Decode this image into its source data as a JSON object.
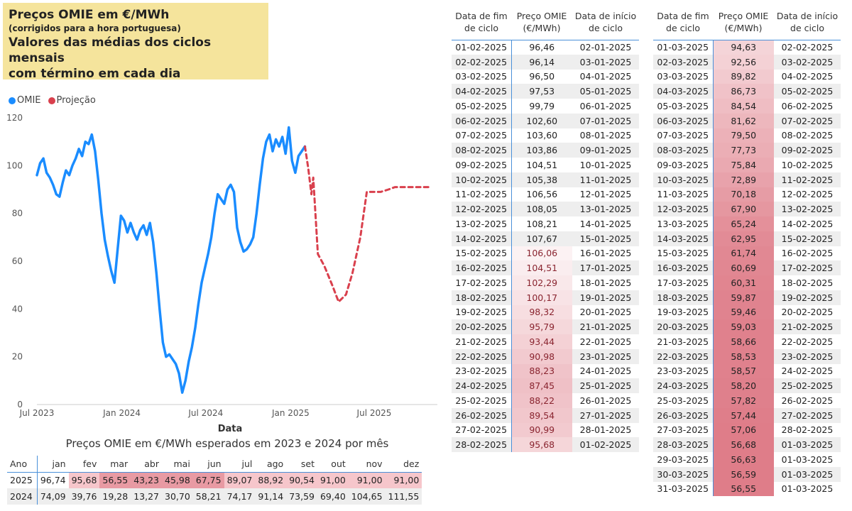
{
  "title": {
    "line1": "Preços OMIE em €/MWh",
    "line2": "(corrigidos para a hora portuguesa)",
    "line3": "Valores das médias dos ciclos mensais",
    "line4": "com término em cada dia"
  },
  "legend": {
    "omie": "OMIE",
    "projecao": "Projeção",
    "omie_color": "#1a8cff",
    "projecao_color": "#d9404d"
  },
  "chart_data": {
    "type": "line",
    "xlabel": "Data",
    "ylabel": "",
    "ylim": [
      0,
      120
    ],
    "yticks": [
      0,
      20,
      40,
      60,
      80,
      100,
      120
    ],
    "xticks": [
      "Jul 2023",
      "Jan 2024",
      "Jul 2024",
      "Jan 2025",
      "Jul 2025"
    ],
    "xtick_dates": [
      "2023-07-01",
      "2024-01-01",
      "2024-07-01",
      "2025-01-01",
      "2025-07-01"
    ],
    "xlim": [
      "2023-07-01",
      "2025-11-15"
    ],
    "series": [
      {
        "name": "OMIE",
        "color": "#1a8cff",
        "style": "solid",
        "points": [
          [
            "2023-07-01",
            96
          ],
          [
            "2023-07-08",
            101
          ],
          [
            "2023-07-15",
            103
          ],
          [
            "2023-07-22",
            97
          ],
          [
            "2023-07-29",
            95
          ],
          [
            "2023-08-05",
            92
          ],
          [
            "2023-08-12",
            88
          ],
          [
            "2023-08-19",
            87
          ],
          [
            "2023-08-26",
            93
          ],
          [
            "2023-09-02",
            98
          ],
          [
            "2023-09-09",
            96
          ],
          [
            "2023-09-16",
            100
          ],
          [
            "2023-09-23",
            103
          ],
          [
            "2023-09-30",
            107
          ],
          [
            "2023-10-07",
            104
          ],
          [
            "2023-10-14",
            110
          ],
          [
            "2023-10-21",
            109
          ],
          [
            "2023-10-28",
            113
          ],
          [
            "2023-11-04",
            106
          ],
          [
            "2023-11-11",
            94
          ],
          [
            "2023-11-18",
            80
          ],
          [
            "2023-11-25",
            69
          ],
          [
            "2023-12-02",
            62
          ],
          [
            "2023-12-09",
            56
          ],
          [
            "2023-12-16",
            51
          ],
          [
            "2023-12-23",
            65
          ],
          [
            "2023-12-30",
            79
          ],
          [
            "2024-01-06",
            77
          ],
          [
            "2024-01-13",
            72
          ],
          [
            "2024-01-20",
            76
          ],
          [
            "2024-01-27",
            72
          ],
          [
            "2024-02-03",
            69
          ],
          [
            "2024-02-10",
            73
          ],
          [
            "2024-02-17",
            75
          ],
          [
            "2024-02-24",
            71
          ],
          [
            "2024-03-02",
            76
          ],
          [
            "2024-03-09",
            68
          ],
          [
            "2024-03-16",
            55
          ],
          [
            "2024-03-23",
            40
          ],
          [
            "2024-03-30",
            26
          ],
          [
            "2024-04-06",
            20
          ],
          [
            "2024-04-13",
            21
          ],
          [
            "2024-04-20",
            19
          ],
          [
            "2024-04-27",
            17
          ],
          [
            "2024-05-04",
            13
          ],
          [
            "2024-05-11",
            5
          ],
          [
            "2024-05-18",
            10
          ],
          [
            "2024-05-25",
            18
          ],
          [
            "2024-06-01",
            24
          ],
          [
            "2024-06-08",
            32
          ],
          [
            "2024-06-15",
            42
          ],
          [
            "2024-06-22",
            51
          ],
          [
            "2024-06-29",
            57
          ],
          [
            "2024-07-06",
            63
          ],
          [
            "2024-07-13",
            70
          ],
          [
            "2024-07-20",
            80
          ],
          [
            "2024-07-27",
            88
          ],
          [
            "2024-08-03",
            86
          ],
          [
            "2024-08-10",
            84
          ],
          [
            "2024-08-17",
            90
          ],
          [
            "2024-08-24",
            92
          ],
          [
            "2024-08-31",
            89
          ],
          [
            "2024-09-07",
            74
          ],
          [
            "2024-09-14",
            68
          ],
          [
            "2024-09-21",
            64
          ],
          [
            "2024-09-28",
            65
          ],
          [
            "2024-10-05",
            67
          ],
          [
            "2024-10-12",
            70
          ],
          [
            "2024-10-19",
            80
          ],
          [
            "2024-10-26",
            92
          ],
          [
            "2024-11-02",
            103
          ],
          [
            "2024-11-09",
            110
          ],
          [
            "2024-11-16",
            113
          ],
          [
            "2024-11-23",
            106
          ],
          [
            "2024-11-30",
            111
          ],
          [
            "2024-12-07",
            108
          ],
          [
            "2024-12-14",
            112
          ],
          [
            "2024-12-21",
            105
          ],
          [
            "2024-12-28",
            116
          ],
          [
            "2025-01-04",
            102
          ],
          [
            "2025-01-11",
            97
          ],
          [
            "2025-01-18",
            104
          ],
          [
            "2025-01-25",
            106
          ],
          [
            "2025-02-01",
            108
          ]
        ]
      },
      {
        "name": "Projeção",
        "color": "#d9404d",
        "style": "dashed",
        "points": [
          [
            "2025-02-01",
            108
          ],
          [
            "2025-02-08",
            99
          ],
          [
            "2025-02-15",
            88
          ],
          [
            "2025-02-19",
            95
          ],
          [
            "2025-03-01",
            63
          ],
          [
            "2025-03-15",
            58
          ],
          [
            "2025-04-01",
            50
          ],
          [
            "2025-04-15",
            43
          ],
          [
            "2025-05-01",
            46
          ],
          [
            "2025-05-15",
            55
          ],
          [
            "2025-06-01",
            70
          ],
          [
            "2025-06-15",
            89
          ],
          [
            "2025-07-01",
            89
          ],
          [
            "2025-07-15",
            89
          ],
          [
            "2025-08-01",
            90
          ],
          [
            "2025-08-15",
            91
          ],
          [
            "2025-09-01",
            91
          ],
          [
            "2025-10-01",
            91
          ],
          [
            "2025-11-01",
            91
          ]
        ]
      }
    ]
  },
  "monthly": {
    "title": "Preços OMIE em €/MWh esperados em 2023 e 2024 por mês",
    "headers": [
      "Ano",
      "jan",
      "fev",
      "mar",
      "abr",
      "mai",
      "jun",
      "jul",
      "ago",
      "set",
      "out",
      "nov",
      "dez"
    ],
    "rows": [
      [
        "2025",
        "96,74",
        "95,68",
        "56,55",
        "43,23",
        "45,98",
        "67,75",
        "89,07",
        "88,92",
        "90,54",
        "91,00",
        "91,00",
        "91,00"
      ],
      [
        "2024",
        "74,09",
        "39,76",
        "19,28",
        "13,27",
        "30,70",
        "58,21",
        "74,17",
        "91,14",
        "73,59",
        "69,40",
        "104,65",
        "111,55"
      ]
    ]
  },
  "feb_table": {
    "headers": [
      "Data de fim de ciclo",
      "Preço OMIE (€/MWh)",
      "Data de início de ciclo"
    ],
    "rows": [
      [
        "01-02-2025",
        "96,46",
        "02-01-2025"
      ],
      [
        "02-02-2025",
        "96,14",
        "03-01-2025"
      ],
      [
        "03-02-2025",
        "96,50",
        "04-01-2025"
      ],
      [
        "04-02-2025",
        "97,53",
        "05-01-2025"
      ],
      [
        "05-02-2025",
        "99,79",
        "06-01-2025"
      ],
      [
        "06-02-2025",
        "102,60",
        "07-01-2025"
      ],
      [
        "07-02-2025",
        "103,60",
        "08-01-2025"
      ],
      [
        "08-02-2025",
        "103,86",
        "09-01-2025"
      ],
      [
        "09-02-2025",
        "104,51",
        "10-01-2025"
      ],
      [
        "10-02-2025",
        "105,38",
        "11-01-2025"
      ],
      [
        "11-02-2025",
        "106,56",
        "12-01-2025"
      ],
      [
        "12-02-2025",
        "108,05",
        "13-01-2025"
      ],
      [
        "13-02-2025",
        "108,21",
        "14-01-2025"
      ],
      [
        "14-02-2025",
        "107,67",
        "15-01-2025"
      ],
      [
        "15-02-2025",
        "106,06",
        "16-01-2025"
      ],
      [
        "16-02-2025",
        "104,51",
        "17-01-2025"
      ],
      [
        "17-02-2025",
        "102,29",
        "18-01-2025"
      ],
      [
        "18-02-2025",
        "100,17",
        "19-01-2025"
      ],
      [
        "19-02-2025",
        "98,32",
        "20-01-2025"
      ],
      [
        "20-02-2025",
        "95,79",
        "21-01-2025"
      ],
      [
        "21-02-2025",
        "93,44",
        "22-01-2025"
      ],
      [
        "22-02-2025",
        "90,98",
        "23-01-2025"
      ],
      [
        "23-02-2025",
        "88,23",
        "24-01-2025"
      ],
      [
        "24-02-2025",
        "87,45",
        "25-01-2025"
      ],
      [
        "25-02-2025",
        "88,22",
        "26-01-2025"
      ],
      [
        "26-02-2025",
        "89,54",
        "27-01-2025"
      ],
      [
        "27-02-2025",
        "90,99",
        "28-01-2025"
      ],
      [
        "28-02-2025",
        "95,68",
        "01-02-2025"
      ]
    ]
  },
  "mar_table": {
    "headers": [
      "Data de fim de ciclo",
      "Preço OMIE (€/MWh)",
      "Data de início de ciclo"
    ],
    "rows": [
      [
        "01-03-2025",
        "94,63",
        "02-02-2025"
      ],
      [
        "02-03-2025",
        "92,56",
        "03-02-2025"
      ],
      [
        "03-03-2025",
        "89,82",
        "04-02-2025"
      ],
      [
        "04-03-2025",
        "86,73",
        "05-02-2025"
      ],
      [
        "05-03-2025",
        "84,54",
        "06-02-2025"
      ],
      [
        "06-03-2025",
        "81,62",
        "07-02-2025"
      ],
      [
        "07-03-2025",
        "79,50",
        "08-02-2025"
      ],
      [
        "08-03-2025",
        "77,73",
        "09-02-2025"
      ],
      [
        "09-03-2025",
        "75,84",
        "10-02-2025"
      ],
      [
        "10-03-2025",
        "72,89",
        "11-02-2025"
      ],
      [
        "11-03-2025",
        "70,18",
        "12-02-2025"
      ],
      [
        "12-03-2025",
        "67,90",
        "13-02-2025"
      ],
      [
        "13-03-2025",
        "65,24",
        "14-02-2025"
      ],
      [
        "14-03-2025",
        "62,95",
        "15-02-2025"
      ],
      [
        "15-03-2025",
        "61,74",
        "16-02-2025"
      ],
      [
        "16-03-2025",
        "60,69",
        "17-02-2025"
      ],
      [
        "17-03-2025",
        "60,31",
        "18-02-2025"
      ],
      [
        "18-03-2025",
        "59,87",
        "19-02-2025"
      ],
      [
        "19-03-2025",
        "59,46",
        "20-02-2025"
      ],
      [
        "20-03-2025",
        "59,03",
        "21-02-2025"
      ],
      [
        "21-03-2025",
        "58,66",
        "22-02-2025"
      ],
      [
        "22-03-2025",
        "58,53",
        "23-02-2025"
      ],
      [
        "23-03-2025",
        "58,57",
        "24-02-2025"
      ],
      [
        "24-03-2025",
        "58,20",
        "25-02-2025"
      ],
      [
        "25-03-2025",
        "57,82",
        "26-02-2025"
      ],
      [
        "26-03-2025",
        "57,44",
        "27-02-2025"
      ],
      [
        "27-03-2025",
        "57,06",
        "28-02-2025"
      ],
      [
        "28-03-2025",
        "56,68",
        "01-03-2025"
      ],
      [
        "29-03-2025",
        "56,63",
        "01-03-2025"
      ],
      [
        "30-03-2025",
        "56,59",
        "01-03-2025"
      ],
      [
        "31-03-2025",
        "56,55",
        "01-03-2025"
      ]
    ]
  }
}
